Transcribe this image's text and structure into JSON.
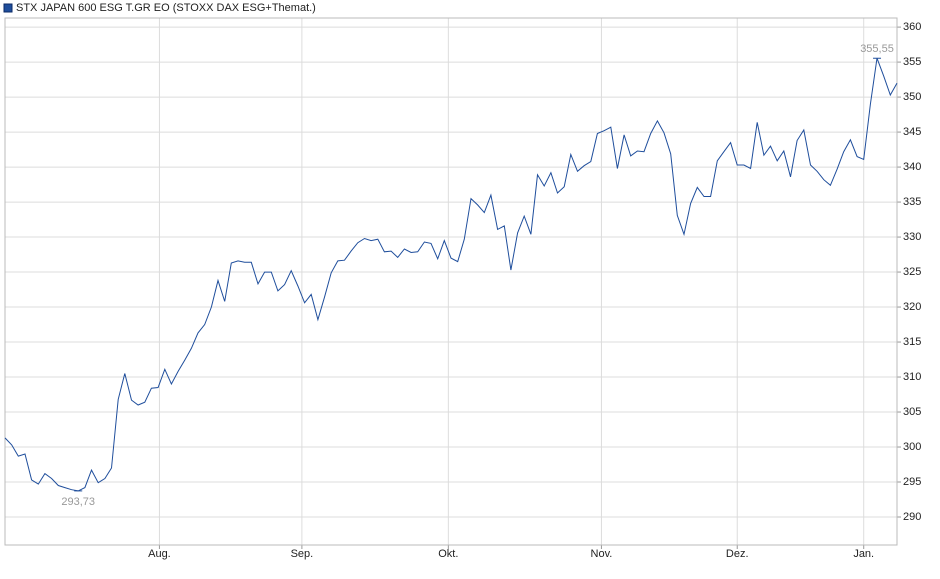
{
  "chart_data": {
    "type": "line",
    "series": [
      {
        "name": "STX JAPAN 600 ESG T.GR EO (STOXX DAX ESG+Themat.)",
        "color": "#1f4e9c",
        "values": [
          301.3,
          300.3,
          298.7,
          299.0,
          295.3,
          294.7,
          296.2,
          295.5,
          294.5,
          294.2,
          293.9,
          293.73,
          294.2,
          296.7,
          294.9,
          295.5,
          297.0,
          306.8,
          310.5,
          306.7,
          306.0,
          306.4,
          308.4,
          308.5,
          311.1,
          309.0,
          310.8,
          312.4,
          314.1,
          316.3,
          317.5,
          320.0,
          323.8,
          320.8,
          326.3,
          326.6,
          326.4,
          326.4,
          323.3,
          325.0,
          325.0,
          322.3,
          323.2,
          325.2,
          323.0,
          320.6,
          321.8,
          318.2,
          321.4,
          324.9,
          326.6,
          326.7,
          328.0,
          329.2,
          329.8,
          329.5,
          329.7,
          327.9,
          328.0,
          327.1,
          328.3,
          327.8,
          327.9,
          329.3,
          329.1,
          326.9,
          329.5,
          327.0,
          326.5,
          329.7,
          335.5,
          334.6,
          333.5,
          336.0,
          331.1,
          331.6,
          325.3,
          330.6,
          333.0,
          330.4,
          338.9,
          337.3,
          339.2,
          336.3,
          337.2,
          341.8,
          339.4,
          340.2,
          340.8,
          344.8,
          345.2,
          345.7,
          339.8,
          344.6,
          341.6,
          342.3,
          342.2,
          344.8,
          346.6,
          344.9,
          341.9,
          333.1,
          330.4,
          334.8,
          337.1,
          335.8,
          335.8,
          340.9,
          342.2,
          343.5,
          340.3,
          340.3,
          339.8,
          346.4,
          341.7,
          343.0,
          340.9,
          342.3,
          338.6,
          343.8,
          345.3,
          340.3,
          339.4,
          338.2,
          337.4,
          339.7,
          342.2,
          343.9,
          341.5,
          341.1,
          349.0,
          355.55,
          353.0,
          350.3,
          352.0
        ],
        "value_labels": [
          null,
          null,
          null,
          null,
          null,
          null,
          null,
          null,
          null,
          null,
          null,
          "293,73",
          null,
          null,
          null,
          null,
          null,
          null,
          null,
          null,
          null,
          null,
          null,
          null,
          null,
          null,
          null,
          null,
          null,
          null,
          null,
          null,
          null,
          null,
          null,
          null,
          null,
          null,
          null,
          null,
          null,
          null,
          null,
          null,
          null,
          null,
          null,
          null,
          null,
          null,
          null,
          null,
          null,
          null,
          null,
          null,
          null,
          null,
          null,
          null,
          null,
          null,
          null,
          null,
          null,
          null,
          null,
          null,
          null,
          null,
          null,
          null,
          null,
          null,
          null,
          null,
          null,
          null,
          null,
          null,
          null,
          null,
          null,
          null,
          null,
          null,
          null,
          null,
          null,
          null,
          null,
          null,
          null,
          null,
          null,
          null,
          null,
          null,
          null,
          null,
          null,
          null,
          null,
          null,
          null,
          null,
          null,
          null,
          null,
          null,
          null,
          null,
          null,
          null,
          null,
          null,
          null,
          null,
          null,
          null,
          null,
          null,
          null,
          null,
          null,
          null,
          null,
          null,
          null,
          null,
          null,
          "355,55",
          null,
          null,
          null
        ]
      }
    ],
    "xlim": [
      0,
      134
    ],
    "xticks": [
      {
        "value": 23.2,
        "label": "Aug."
      },
      {
        "value": 44.6,
        "label": "Sep."
      },
      {
        "value": 66.6,
        "label": "Okt."
      },
      {
        "value": 89.6,
        "label": "Nov."
      },
      {
        "value": 110,
        "label": "Dez."
      },
      {
        "value": 129,
        "label": "Jan."
      }
    ],
    "ylim": [
      286,
      361.3
    ],
    "yticks": [
      290,
      295,
      300,
      305,
      310,
      315,
      320,
      325,
      330,
      335,
      340,
      345,
      350,
      355,
      360
    ],
    "grid": true
  }
}
